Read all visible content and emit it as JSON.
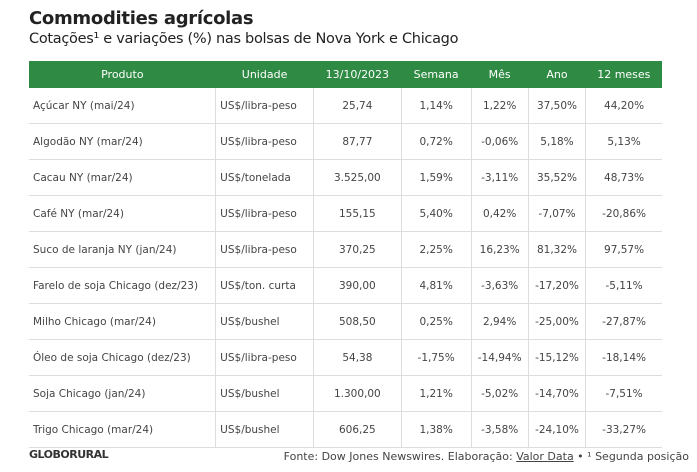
{
  "title": "Commodities agrícolas",
  "subtitle": "Cotações¹ e variações (%) nas bolsas de Nova York e Chicago",
  "headers": [
    "Produto",
    "Unidade",
    "13/10/2023",
    "Semana",
    "Mês",
    "Ano",
    "12 meses"
  ],
  "rows": [
    [
      "Açúcar NY (mai/24)",
      "US$/libra-peso",
      "25,74",
      "1,14%",
      "1,22%",
      "37,50%",
      "44,20%"
    ],
    [
      "Algodão NY (mar/24)",
      "US$/libra-peso",
      "87,77",
      "0,72%",
      "-0,06%",
      "5,18%",
      "5,13%"
    ],
    [
      "Cacau NY (mar/24)",
      "US$/tonelada",
      "3.525,00",
      "1,59%",
      "-3,11%",
      "35,52%",
      "48,73%"
    ],
    [
      "Café NY (mar/24)",
      "US$/libra-peso",
      "155,15",
      "5,40%",
      "0,42%",
      "-7,07%",
      "-20,86%"
    ],
    [
      "Suco de laranja NY (jan/24)",
      "US$/libra-peso",
      "370,25",
      "2,25%",
      "16,23%",
      "81,32%",
      "97,57%"
    ],
    [
      "Farelo de soja Chicago (dez/23)",
      "US$/ton. curta",
      "390,00",
      "4,81%",
      "-3,63%",
      "-17,20%",
      "-5,11%"
    ],
    [
      "Milho Chicago (mar/24)",
      "US$/bushel",
      "508,50",
      "0,25%",
      "2,94%",
      "-25,00%",
      "-27,87%"
    ],
    [
      "Óleo de soja Chicago (dez/23)",
      "US$/libra-peso",
      "54,38",
      "-1,75%",
      "-14,94%",
      "-15,12%",
      "-18,14%"
    ],
    [
      "Soja Chicago (jan/24)",
      "US$/bushel",
      "1.300,00",
      "1,21%",
      "-5,02%",
      "-14,70%",
      "-7,51%"
    ],
    [
      "Trigo Chicago (mar/24)",
      "US$/bushel",
      "606,25",
      "1,38%",
      "-3,58%",
      "-24,10%",
      "-33,27%"
    ]
  ],
  "footer": {
    "logo": "GLOBORURAL",
    "source": "Fonte: Dow Jones Newswires. Elaboração: ",
    "link": "Valor Data",
    "note": " • ¹ Segunda posição"
  }
}
